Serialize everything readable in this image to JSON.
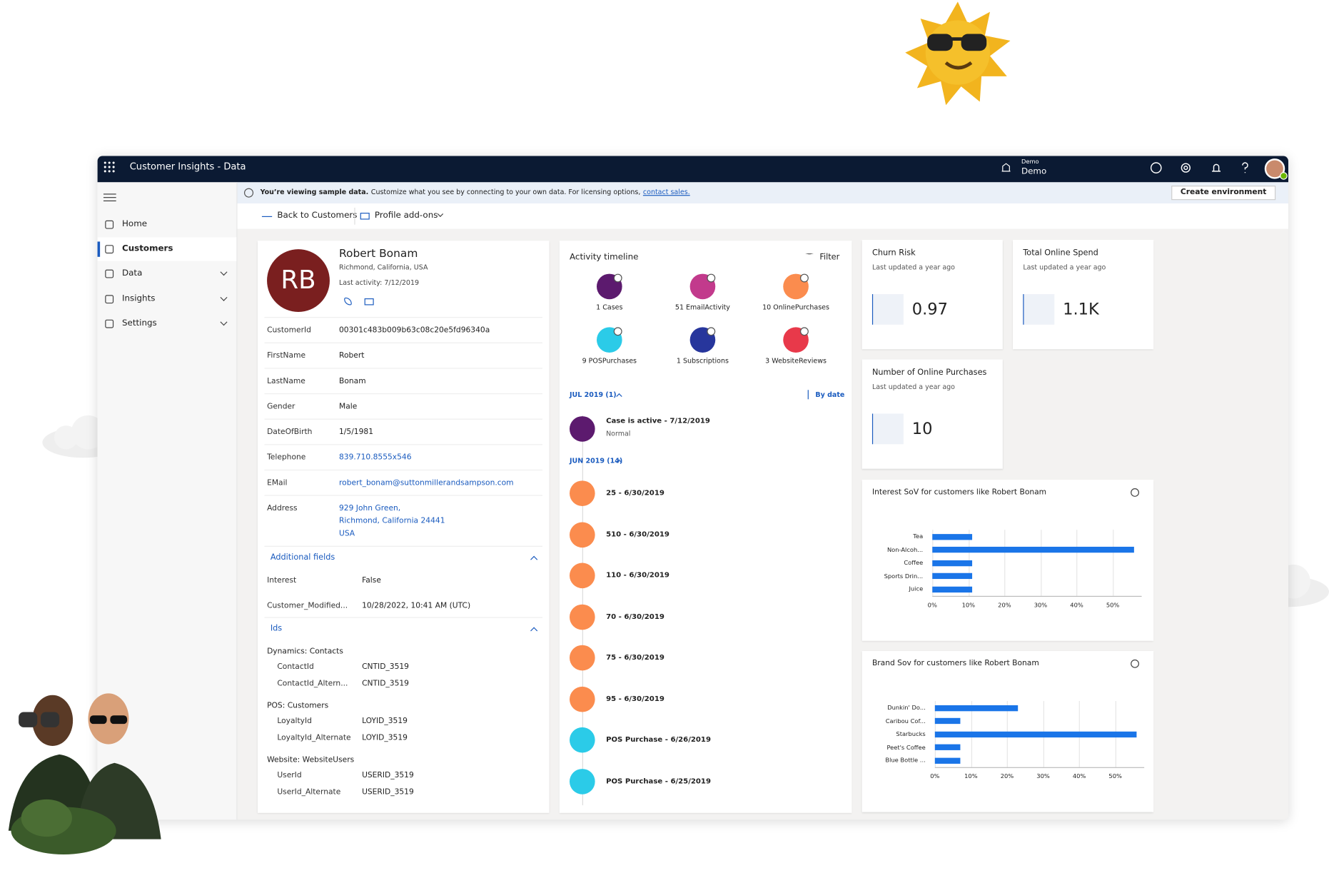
{
  "app": {
    "title": "Customer Insights - Data",
    "org": "Demo",
    "user": "Demo"
  },
  "banner": {
    "bold": "You’re viewing sample data.",
    "text": "Customize what you see by connecting to your own data. For licensing options,",
    "link": "contact sales.",
    "button": "Create environment"
  },
  "nav": {
    "items": [
      {
        "label": "Home",
        "expandable": false
      },
      {
        "label": "Customers",
        "expandable": false
      },
      {
        "label": "Data",
        "expandable": true
      },
      {
        "label": "Insights",
        "expandable": true
      },
      {
        "label": "Settings",
        "expandable": true
      }
    ],
    "selected": 1
  },
  "toolbar": {
    "back": "Back to Customers",
    "addons": "Profile add-ons"
  },
  "profile": {
    "initials": "RB",
    "name": "Robert Bonam",
    "location": "Richmond, California, USA",
    "last_activity": "Last activity: 7/12/2019",
    "fields": [
      {
        "label": "CustomerId",
        "value": [
          "00301c483b009b63c08c20e5fd96340a"
        ],
        "link": false
      },
      {
        "label": "FirstName",
        "value": [
          "Robert"
        ],
        "link": false
      },
      {
        "label": "LastName",
        "value": [
          "Bonam"
        ],
        "link": false
      },
      {
        "label": "Gender",
        "value": [
          "Male"
        ],
        "link": false
      },
      {
        "label": "DateOfBirth",
        "value": [
          "1/5/1981"
        ],
        "link": false
      },
      {
        "label": "Telephone",
        "value": [
          "839.710.8555x546"
        ],
        "link": true
      },
      {
        "label": "EMail",
        "value": [
          "robert_bonam@suttonmillerandsampson.com"
        ],
        "link": true
      },
      {
        "label": "Address",
        "value": [
          "929 John Green,",
          "Richmond, California 24441",
          "USA"
        ],
        "link": true
      }
    ]
  },
  "additional": {
    "title": "Additional fields",
    "fields": [
      {
        "label": "Interest",
        "value": "False"
      },
      {
        "label": "Customer_Modified...",
        "value": "10/28/2022, 10:41 AM (UTC)"
      }
    ]
  },
  "ids": {
    "title": "Ids",
    "groups": [
      {
        "name": "Dynamics: Contacts",
        "fields": [
          {
            "label": "ContactId",
            "value": "CNTID_3519"
          },
          {
            "label": "ContactId_Altern...",
            "value": "CNTID_3519"
          }
        ]
      },
      {
        "name": "POS: Customers",
        "fields": [
          {
            "label": "LoyaltyId",
            "value": "LOYID_3519"
          },
          {
            "label": "LoyaltyId_Alternate",
            "value": "LOYID_3519"
          }
        ]
      },
      {
        "name": "Website: WebsiteUsers",
        "fields": [
          {
            "label": "UserId",
            "value": "USERID_3519"
          },
          {
            "label": "UserId_Alternate",
            "value": "USERID_3519"
          }
        ]
      }
    ]
  },
  "timeline": {
    "title": "Activity timeline",
    "filter": "Filter",
    "sort": "By date",
    "types": [
      {
        "label": "1 Cases",
        "color": "#5c1a6e"
      },
      {
        "label": "51 EmailActivity",
        "color": "#c23a8c"
      },
      {
        "label": "10 OnlinePurchases",
        "color": "#fb8c4e"
      },
      {
        "label": "9 POSPurchases",
        "color": "#2bcbe8"
      },
      {
        "label": "1 Subscriptions",
        "color": "#27369c"
      },
      {
        "label": "3 WebsiteReviews",
        "color": "#e8394a"
      }
    ],
    "groups": [
      {
        "label": "JUL 2019 (1)",
        "items": [
          {
            "title": "Case is active - 7/12/2019",
            "sub": "Normal",
            "color": "#5c1a6e"
          }
        ]
      },
      {
        "label": "JUN 2019 (14)",
        "items": [
          {
            "title": "25 - 6/30/2019",
            "color": "#fb8c4e"
          },
          {
            "title": "510 - 6/30/2019",
            "color": "#fb8c4e"
          },
          {
            "title": "110 - 6/30/2019",
            "color": "#fb8c4e"
          },
          {
            "title": "70 - 6/30/2019",
            "color": "#fb8c4e"
          },
          {
            "title": "75 - 6/30/2019",
            "color": "#fb8c4e"
          },
          {
            "title": "95 - 6/30/2019",
            "color": "#fb8c4e"
          },
          {
            "title": "POS Purchase - 6/26/2019",
            "color": "#2bcbe8"
          },
          {
            "title": "POS Purchase - 6/25/2019",
            "color": "#2bcbe8"
          }
        ]
      }
    ]
  },
  "kpis": [
    {
      "title": "Churn Risk",
      "updated": "Last updated a year ago",
      "value": "0.97"
    },
    {
      "title": "Total Online Spend",
      "updated": "Last updated a year ago",
      "value": "1.1K"
    },
    {
      "title": "Number of Online Purchases",
      "updated": "Last updated a year ago",
      "value": "10"
    }
  ],
  "chart_data": [
    {
      "type": "bar",
      "orientation": "horizontal",
      "title": "Interest SoV for customers like Robert Bonam",
      "categories": [
        "Tea",
        "Non-Alcoh...",
        "Coffee",
        "Sports Drin...",
        "Juice"
      ],
      "values": [
        11,
        56,
        11,
        11,
        11
      ],
      "color": "#1a75e8",
      "xlim": [
        0,
        58
      ],
      "xticks": [
        {
          "value": 0,
          "label": "0%"
        },
        {
          "value": 10,
          "label": "10%"
        },
        {
          "value": 20,
          "label": "20%"
        },
        {
          "value": 30,
          "label": "30%"
        },
        {
          "value": 40,
          "label": "40%"
        },
        {
          "value": 50,
          "label": "50%"
        }
      ],
      "grid": true
    },
    {
      "type": "bar",
      "orientation": "horizontal",
      "title": "Brand Sov for customers like Robert Bonam",
      "categories": [
        "Dunkin' Do...",
        "Caribou Cof...",
        "Starbucks",
        "Peet's Coffee",
        "Blue Bottle ..."
      ],
      "values": [
        23,
        7,
        56,
        7,
        7
      ],
      "color": "#1a75e8",
      "xlim": [
        0,
        58
      ],
      "xticks": [
        {
          "value": 0,
          "label": "0%"
        },
        {
          "value": 10,
          "label": "10%"
        },
        {
          "value": 20,
          "label": "20%"
        },
        {
          "value": 30,
          "label": "30%"
        },
        {
          "value": 40,
          "label": "40%"
        },
        {
          "value": 50,
          "label": "50%"
        }
      ],
      "grid": true
    }
  ]
}
